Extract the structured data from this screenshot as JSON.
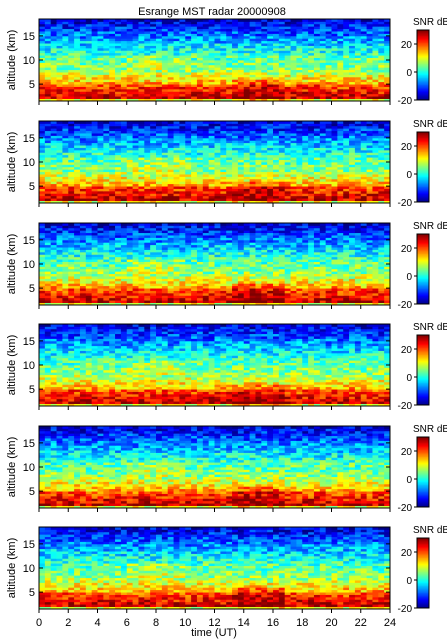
{
  "figure": {
    "title": "Esrange MST radar 20000908"
  },
  "chart_data": {
    "type": "heatmap",
    "panel_count": 6,
    "xlabel": "time (UT)",
    "ylabel": "altitude (km)",
    "xlim": [
      0,
      24
    ],
    "ylim": [
      1.5,
      18.5
    ],
    "x_ticks": [
      0,
      2,
      4,
      6,
      8,
      10,
      12,
      14,
      16,
      18,
      20,
      22,
      24
    ],
    "y_ticks": [
      5,
      10,
      15
    ],
    "colorbar": {
      "label": "SNR dB",
      "range": [
        -20,
        30
      ],
      "ticks": [
        20,
        0,
        -20
      ],
      "colormap": "jet"
    },
    "description_bands": [
      {
        "altitude_range_km": [
          2,
          5
        ],
        "snr_db_approx": [
          20,
          30
        ]
      },
      {
        "altitude_range_km": [
          5,
          8
        ],
        "snr_db_approx": [
          5,
          15
        ]
      },
      {
        "altitude_range_km": [
          8,
          11
        ],
        "snr_db_approx": [
          0,
          8
        ]
      },
      {
        "altitude_range_km": [
          11,
          18
        ],
        "snr_db_approx": [
          -20,
          0
        ]
      }
    ]
  },
  "colors": {
    "jet": [
      "#00008f",
      "#0000ff",
      "#00ffff",
      "#ffff00",
      "#ff0000",
      "#800000"
    ]
  }
}
